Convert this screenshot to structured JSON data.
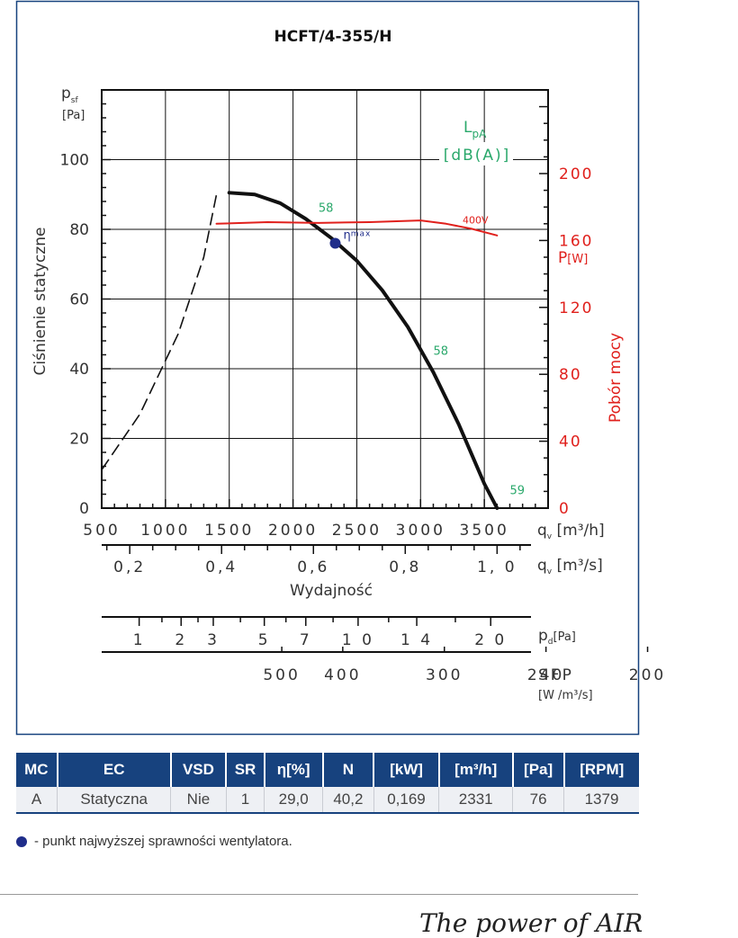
{
  "chart_data": {
    "type": "line",
    "title": "HCFT/4-355/H",
    "ylabel_left": "Ciśnienie statyczne",
    "ylabel_left_symbol": "p",
    "ylabel_left_sub": "sf",
    "ylabel_left_unit": "[Pa]",
    "ylabel_right": "Pobór mocy",
    "ylabel_right_symbol": "P",
    "ylabel_right_unit": "[W]",
    "xlabel": "Wydajność",
    "ylim_left": [
      0,
      120
    ],
    "ylim_right": [
      0,
      250
    ],
    "xlim_m3h": [
      500,
      4000
    ],
    "x_ticks_m3h": [
      "500",
      "1000",
      "1500",
      "2000",
      "2500",
      "3000",
      "3500"
    ],
    "x_unit_m3h_symbol": "q",
    "x_unit_m3h_sub": "v",
    "x_unit_m3h": "[m³/h]",
    "x_ticks_m3s": [
      {
        "v": 0.2,
        "label": "0,2"
      },
      {
        "v": 0.4,
        "label": "0,4"
      },
      {
        "v": 0.6,
        "label": "0,6"
      },
      {
        "v": 0.8,
        "label": "0,8"
      },
      {
        "v": 1.0,
        "label": "1, 0"
      }
    ],
    "x_unit_m3s": "[m³/s]",
    "y_ticks_left": [
      "0",
      "20",
      "40",
      "60",
      "80",
      "100"
    ],
    "y_ticks_right": [
      "0",
      "40",
      "80",
      "120",
      "160",
      "200"
    ],
    "lpa_label": "L",
    "lpa_sub": "pA",
    "lpa_unit": "[dB(A)]",
    "eta_label": "η",
    "eta_sub": "max",
    "series": [
      {
        "name": "ciśnienie",
        "axis": "left",
        "color": "#111111",
        "x": [
          1500,
          1700,
          1900,
          2100,
          2300,
          2500,
          2700,
          2900,
          3100,
          3300,
          3500,
          3600
        ],
        "y": [
          90.5,
          90,
          87.5,
          83,
          77.5,
          71,
          62.5,
          52,
          39,
          24,
          7,
          0
        ]
      },
      {
        "name": "400V",
        "axis": "right",
        "color": "#e0201c",
        "x": [
          1400,
          1800,
          2200,
          2600,
          3000,
          3200,
          3400,
          3600
        ],
        "y": [
          170,
          171,
          170.5,
          171,
          172,
          170,
          167,
          163
        ]
      }
    ],
    "dashed_curve": {
      "color": "#111111",
      "x": [
        500,
        800,
        1100,
        1300,
        1400
      ],
      "y": [
        11,
        27,
        50,
        72,
        90
      ]
    },
    "sound_labels": [
      {
        "x": 2200,
        "y": 85,
        "text": "58"
      },
      {
        "x": 3100,
        "y": 44,
        "text": "58"
      },
      {
        "x": 3700,
        "y": 4,
        "text": "59"
      }
    ],
    "eta_point": {
      "x": 2331,
      "y": 76,
      "color": "#1f2d8a"
    },
    "pd_scale": {
      "unit_symbol": "p",
      "unit_sub": "d",
      "unit": "[Pa]",
      "ticks": [
        {
          "v": 1,
          "label": "1"
        },
        {
          "v": 2,
          "label": "2"
        },
        {
          "v": 3,
          "label": "3"
        },
        {
          "v": 5,
          "label": "5"
        },
        {
          "v": 7,
          "label": "7"
        },
        {
          "v": 10,
          "label": "1 0"
        },
        {
          "v": 14,
          "label": "1 4"
        },
        {
          "v": 20,
          "label": "2 0"
        }
      ]
    },
    "sfp_scale": {
      "label": "SFP",
      "unit": "[W /m³/s]",
      "ticks": [
        {
          "v": 500,
          "label": "500"
        },
        {
          "v": 400,
          "label": "400"
        },
        {
          "v": 300,
          "label": "300"
        },
        {
          "v": 240,
          "label": "240"
        },
        {
          "v": 200,
          "label": "200"
        }
      ]
    }
  },
  "table": {
    "headers": [
      "MC",
      "EC",
      "VSD",
      "SR",
      "η[%]",
      "N",
      "[kW]",
      "[m³/h]",
      "[Pa]",
      "[RPM]"
    ],
    "row": [
      "A",
      "Statyczna",
      "Nie",
      "1",
      "29,0",
      "40,2",
      "0,169",
      "2331",
      "76",
      "1379"
    ]
  },
  "legend": {
    "text": "- punkt najwyższej sprawności wentylatora."
  },
  "brand": {
    "text": "The power of AIR"
  }
}
